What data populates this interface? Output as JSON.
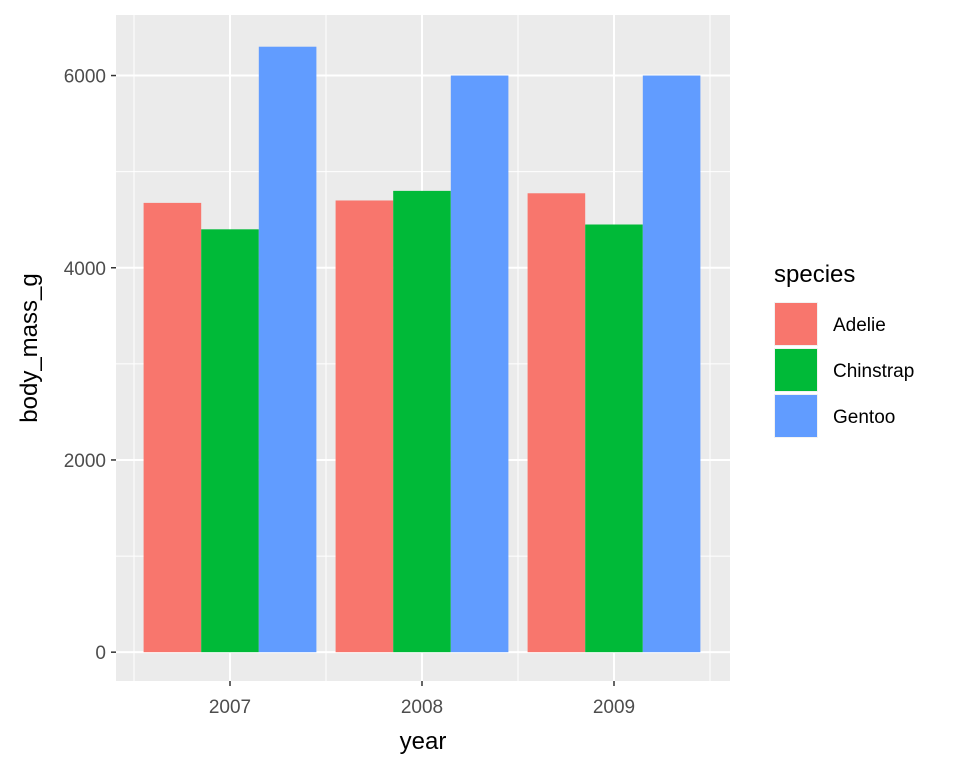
{
  "chart_data": {
    "type": "bar",
    "categories": [
      "2007",
      "2008",
      "2009"
    ],
    "series": [
      {
        "name": "Adelie",
        "values": [
          4675,
          4700,
          4775
        ],
        "color": "#F8766D"
      },
      {
        "name": "Chinstrap",
        "values": [
          4400,
          4800,
          4450
        ],
        "color": "#00BA38"
      },
      {
        "name": "Gentoo",
        "values": [
          6300,
          6000,
          6000
        ],
        "color": "#619CFF"
      }
    ],
    "title": "",
    "xlabel": "year",
    "ylabel": "body_mass_g",
    "ylim": [
      -300,
      6630
    ],
    "yticks": [
      0,
      2000,
      4000,
      6000
    ],
    "ytick_labels": [
      "0",
      "2000",
      "4000",
      "6000"
    ],
    "legend_title": "species",
    "legend_position": "right",
    "grid": true,
    "panel_background": "#EBEBEB",
    "grid_color": "#FFFFFF"
  }
}
